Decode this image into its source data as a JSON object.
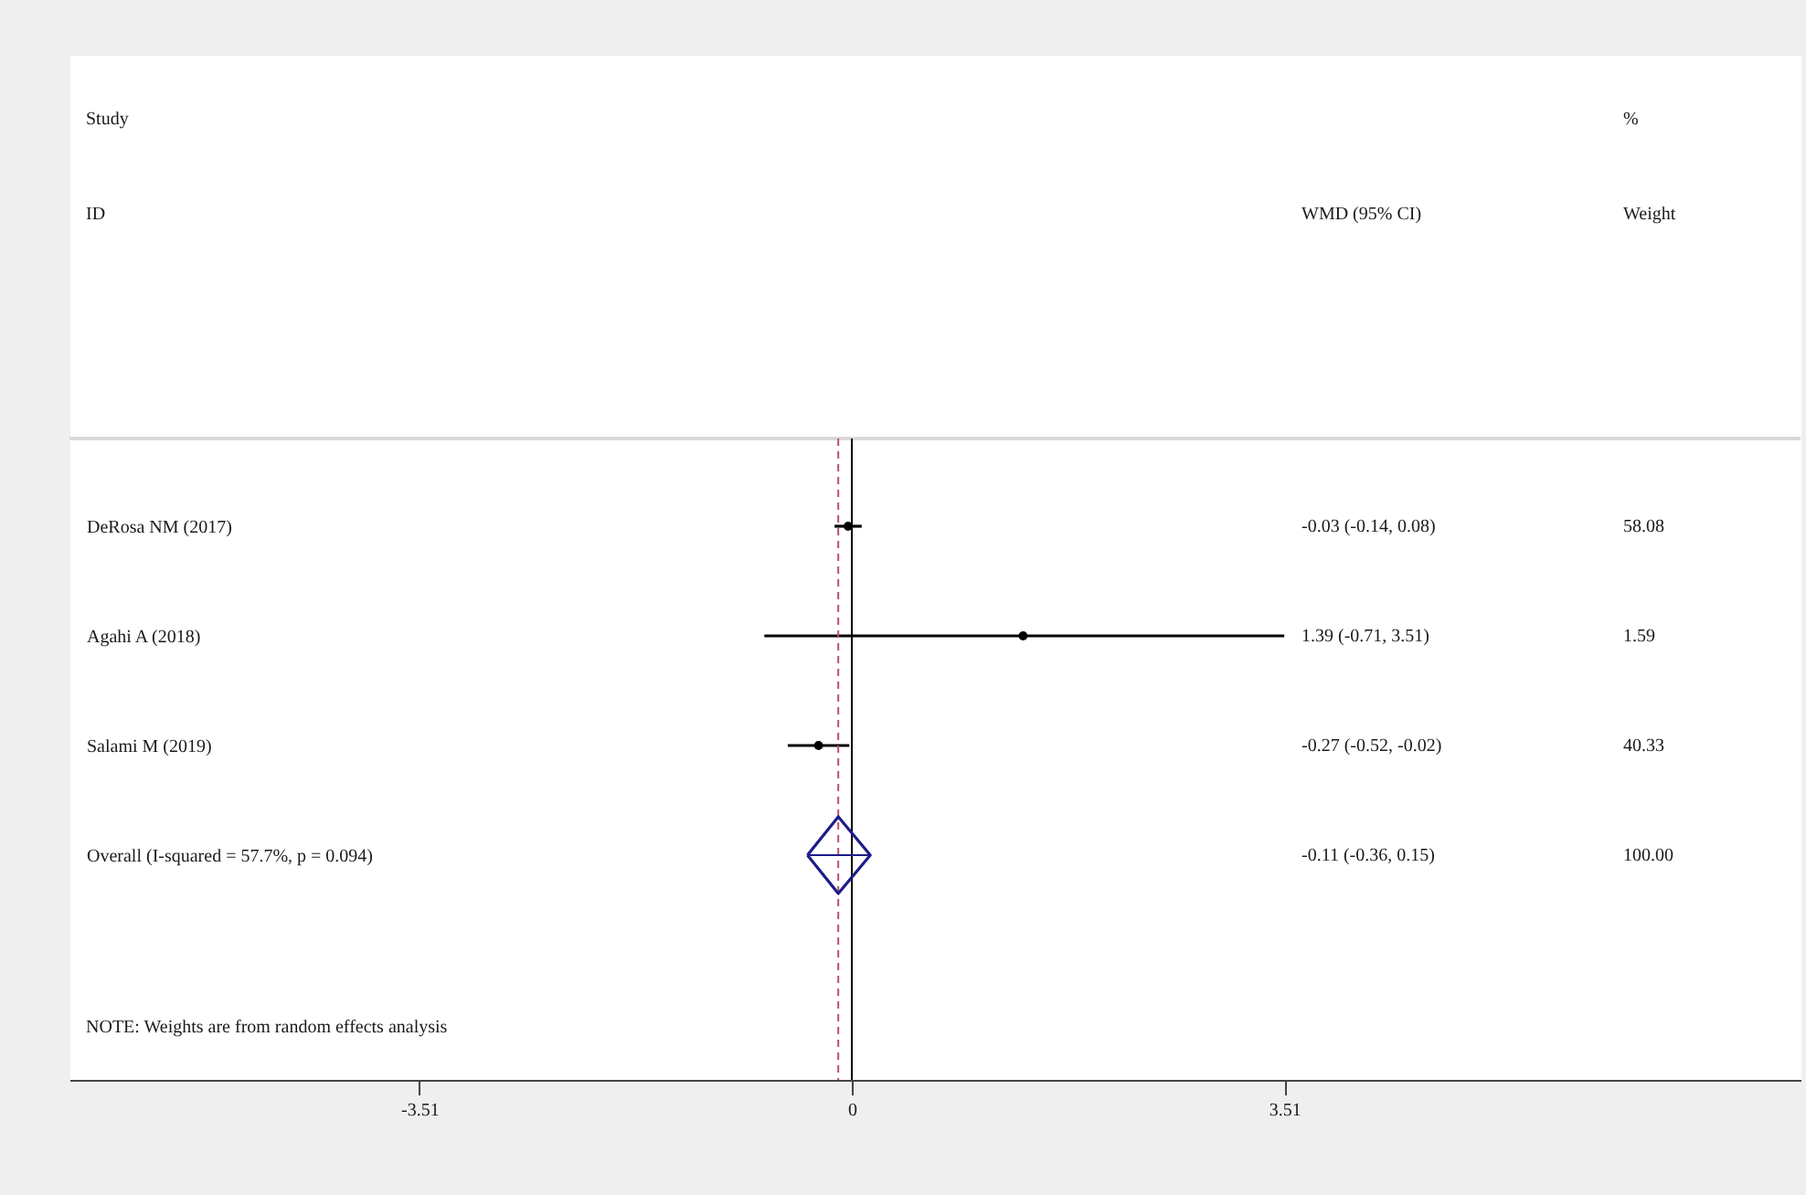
{
  "chart_data": {
    "type": "scatter",
    "orientation": "horizontal",
    "categories": [
      "DeRosa NM (2017)",
      "Agahi A (2018)",
      "Salami M (2019)",
      "Overall (I-squared = 57.7%, p = 0.094)"
    ],
    "series": [
      {
        "marker": "circle",
        "color": "#000000",
        "values": [
          -0.03,
          1.39,
          -0.27,
          null
        ],
        "errors": [
          [
            -0.14,
            0.08
          ],
          [
            -0.71,
            3.51
          ],
          [
            -0.52,
            -0.02
          ],
          null
        ]
      },
      {
        "marker": "diamond",
        "color": "#1c1c8a",
        "values": [
          null,
          null,
          null,
          -0.11
        ],
        "errors": [
          null,
          null,
          null,
          [
            -0.36,
            0.15
          ]
        ]
      }
    ],
    "xlim": [
      -6.35,
      7.7
    ],
    "xticks": [
      -3.51,
      0,
      3.51
    ],
    "ref_lines": [
      {
        "axis": "x",
        "value": 0,
        "color": "#000000",
        "line_style": "solid"
      },
      {
        "axis": "x",
        "value": -0.11,
        "color": "#c0506a",
        "line_style": "dashed"
      }
    ],
    "annotations": [
      "Study",
      "ID",
      "WMD (95% CI)",
      "%",
      "Weight",
      "-0.03 (-0.14, 0.08)",
      "58.08",
      "1.39 (-0.71, 3.51)",
      "1.59",
      "-0.27 (-0.52, -0.02)",
      "40.33",
      "-0.11 (-0.36, 0.15)",
      "100.00",
      "NOTE: Weights are from random effects analysis"
    ]
  }
}
